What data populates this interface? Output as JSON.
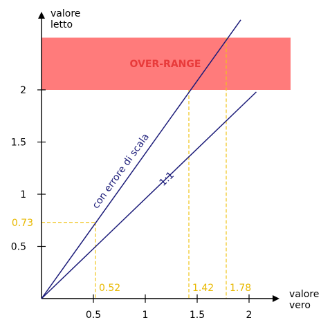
{
  "chart_data": {
    "type": "line",
    "xlabel": [
      "valore",
      "vero"
    ],
    "ylabel": [
      "valore",
      "letto"
    ],
    "xlim": [
      0,
      2.25
    ],
    "ylim": [
      0,
      2.6
    ],
    "x_ticks": [
      0.5,
      1,
      1.5,
      2
    ],
    "x_tick_labels": [
      "0.5",
      "1",
      "1.5",
      "2"
    ],
    "y_ticks": [
      0.5,
      1,
      1.5,
      2
    ],
    "y_tick_labels": [
      "0.5",
      "1",
      "1.5",
      "2"
    ],
    "series": [
      {
        "name": "1:1",
        "x": [
          0,
          2.07
        ],
        "y": [
          0,
          1.98
        ]
      },
      {
        "name": "con errore di scala",
        "x": [
          0,
          1.92
        ],
        "y": [
          0,
          2.67
        ]
      }
    ],
    "band": {
      "label": "OVER-RANGE",
      "y_from": 2.0,
      "y_to": 2.5,
      "color": "#ff7b7b"
    },
    "guides": [
      {
        "x": 0.52,
        "y": 0.73,
        "x_label": "0.52",
        "y_label": "0.73"
      },
      {
        "x": 1.42,
        "y": 2.0,
        "x_label": "1.42"
      },
      {
        "x": 1.78,
        "y": 2.5,
        "x_label": "1.78"
      }
    ],
    "colors": {
      "lines": "#1a1a78",
      "guides": "#f0c419",
      "band": "#ff7b7b"
    },
    "grid": false,
    "legend": "none"
  }
}
